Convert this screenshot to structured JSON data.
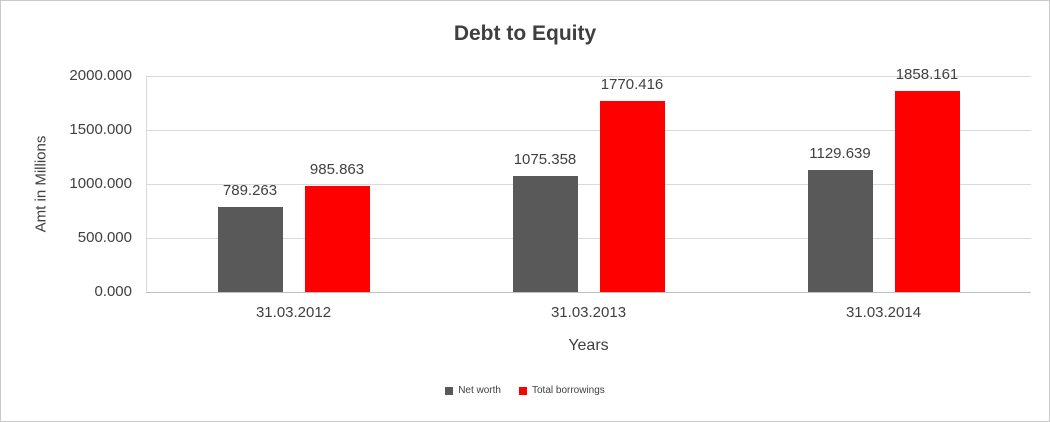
{
  "chart_data": {
    "type": "bar",
    "title": "Debt to Equity",
    "xlabel": "Years",
    "ylabel": "Amt in Millions",
    "categories": [
      "31.03.2012",
      "31.03.2013",
      "31.03.2014"
    ],
    "series": [
      {
        "name": "Net worth",
        "color": "#595959",
        "values": [
          789.263,
          1075.358,
          1129.639
        ]
      },
      {
        "name": "Total borrowings",
        "color": "#ff0000",
        "values": [
          985.863,
          1770.416,
          1858.161
        ]
      }
    ],
    "ylim": [
      0,
      2000
    ],
    "yticks": [
      {
        "value": 0,
        "label": "0.000"
      },
      {
        "value": 500,
        "label": "500.000"
      },
      {
        "value": 1000,
        "label": "1000.000"
      },
      {
        "value": 1500,
        "label": "1500.000"
      },
      {
        "value": 2000,
        "label": "2000.000"
      }
    ],
    "grid": true,
    "legend_position": "bottom",
    "value_labels": true,
    "value_label_decimals": 3,
    "colors": {
      "text": "#404040",
      "gridline": "#d9d9d9",
      "zero_axis_line": "#bfbfbf",
      "figure_border": "#c9c9c9",
      "background": "#ffffff"
    }
  }
}
